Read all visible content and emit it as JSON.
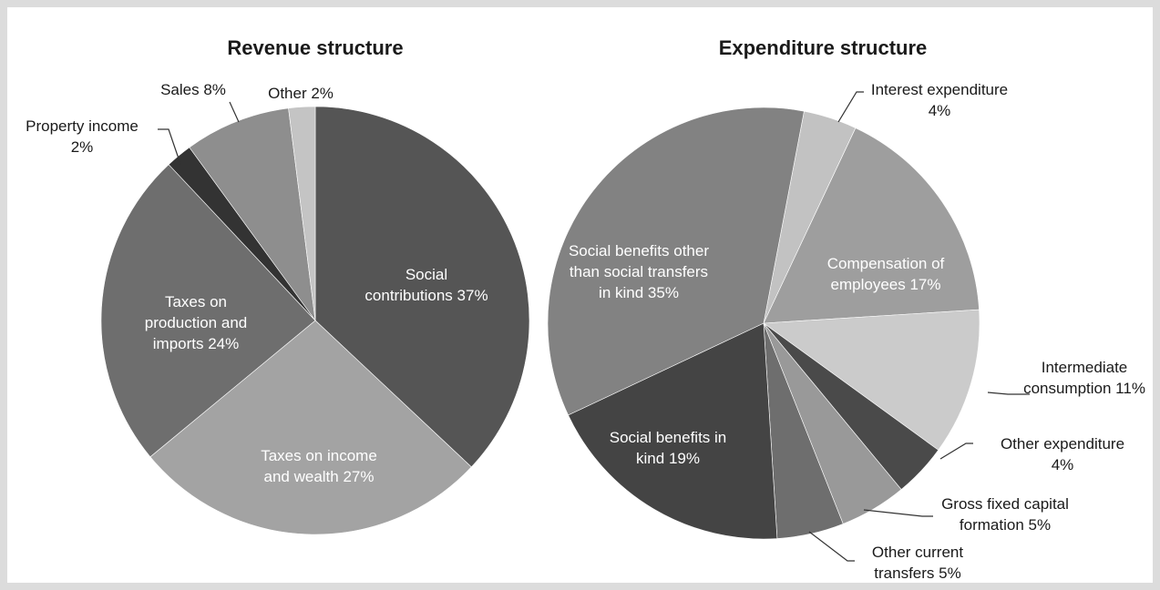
{
  "chart_data": [
    {
      "type": "pie",
      "title": "Revenue structure",
      "slices": [
        {
          "name": "Social contributions",
          "value": 37,
          "label_lines": [
            "Social",
            "contributions 37%"
          ],
          "color": "#555555"
        },
        {
          "name": "Taxes on income and wealth",
          "value": 27,
          "label_lines": [
            "Taxes on income",
            "and wealth 27%"
          ],
          "color": "#a3a3a3"
        },
        {
          "name": "Taxes on production and imports",
          "value": 24,
          "label_lines": [
            "Taxes on",
            "production and",
            "imports 24%"
          ],
          "color": "#6e6e6e"
        },
        {
          "name": "Property income",
          "value": 2,
          "label_lines": [
            "Property income",
            "2%"
          ],
          "color": "#333333"
        },
        {
          "name": "Sales",
          "value": 8,
          "label_lines": [
            "Sales 8%"
          ],
          "color": "#8e8e8e"
        },
        {
          "name": "Other",
          "value": 2,
          "label_lines": [
            "Other 2%"
          ],
          "color": "#c4c4c4"
        }
      ]
    },
    {
      "type": "pie",
      "title": "Expenditure structure",
      "slices": [
        {
          "name": "Interest expenditure",
          "value": 4,
          "label_lines": [
            "Interest expenditure",
            "4%"
          ],
          "color": "#c2c2c2"
        },
        {
          "name": "Compensation of employees",
          "value": 17,
          "label_lines": [
            "Compensation of",
            "employees 17%"
          ],
          "color": "#9e9e9e"
        },
        {
          "name": "Intermediate consumption",
          "value": 11,
          "label_lines": [
            "Intermediate",
            "consumption 11%"
          ],
          "color": "#cbcbcb"
        },
        {
          "name": "Other expenditure",
          "value": 4,
          "label_lines": [
            "Other expenditure",
            "4%"
          ],
          "color": "#4a4a4a"
        },
        {
          "name": "Gross fixed capital formation",
          "value": 5,
          "label_lines": [
            "Gross fixed capital",
            "formation 5%"
          ],
          "color": "#999999"
        },
        {
          "name": "Other current transfers",
          "value": 5,
          "label_lines": [
            "Other current",
            "transfers 5%"
          ],
          "color": "#6e6e6e"
        },
        {
          "name": "Social benefits in kind",
          "value": 19,
          "label_lines": [
            "Social benefits in",
            "kind 19%"
          ],
          "color": "#444444"
        },
        {
          "name": "Social benefits other than social transfers in kind",
          "value": 35,
          "label_lines": [
            "Social benefits other",
            "than social transfers",
            "in kind 35%"
          ],
          "color": "#828282"
        }
      ]
    }
  ]
}
